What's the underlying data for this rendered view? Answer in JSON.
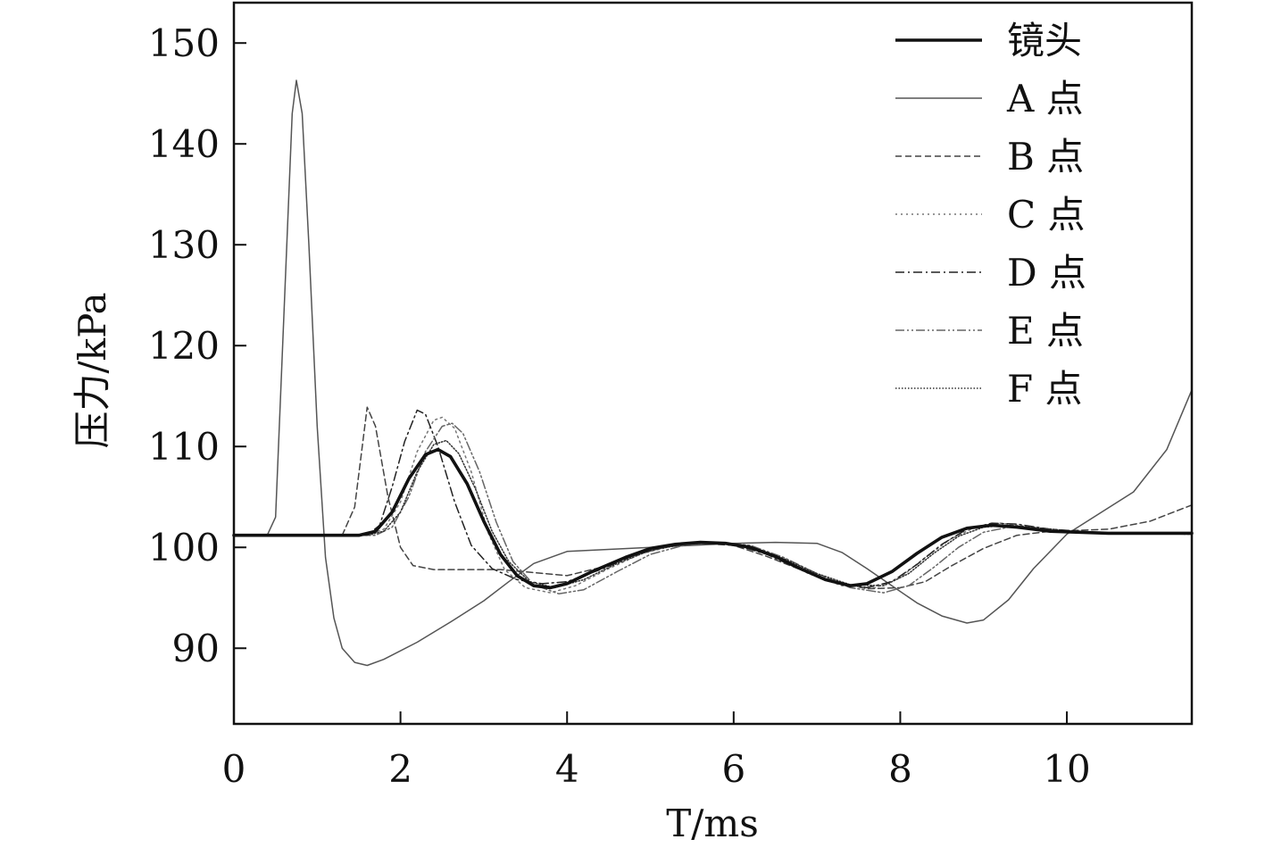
{
  "chart_data": {
    "type": "line",
    "title": "",
    "xlabel": "T/ms",
    "ylabel": "压力/kPa",
    "xlim": [
      0,
      11.5
    ],
    "ylim": [
      82.5,
      154
    ],
    "grid": false,
    "legend_position": "top-right",
    "x_ticks": [
      "0",
      "2",
      "4",
      "6",
      "8",
      "10"
    ],
    "x_tick_values": [
      0,
      2,
      4,
      6,
      8,
      10
    ],
    "y_ticks": [
      "90",
      "100",
      "110",
      "120",
      "130",
      "140",
      "150"
    ],
    "y_tick_values": [
      90,
      100,
      110,
      120,
      130,
      140,
      150
    ],
    "series": [
      {
        "name": "镜头",
        "style": "solid-thick",
        "color": "#111111",
        "points": [
          [
            0,
            101.2
          ],
          [
            1.5,
            101.2
          ],
          [
            1.7,
            101.6
          ],
          [
            1.9,
            103.5
          ],
          [
            2.1,
            106.8
          ],
          [
            2.3,
            109.2
          ],
          [
            2.45,
            109.7
          ],
          [
            2.6,
            109.0
          ],
          [
            2.8,
            106.3
          ],
          [
            3.0,
            102.6
          ],
          [
            3.2,
            99.3
          ],
          [
            3.4,
            97.2
          ],
          [
            3.6,
            96.2
          ],
          [
            3.8,
            96.0
          ],
          [
            4.0,
            96.4
          ],
          [
            4.3,
            97.6
          ],
          [
            4.7,
            99.0
          ],
          [
            5.0,
            99.9
          ],
          [
            5.3,
            100.3
          ],
          [
            5.6,
            100.5
          ],
          [
            5.9,
            100.4
          ],
          [
            6.2,
            100.0
          ],
          [
            6.5,
            99.1
          ],
          [
            6.8,
            97.9
          ],
          [
            7.1,
            96.8
          ],
          [
            7.4,
            96.2
          ],
          [
            7.6,
            96.4
          ],
          [
            7.9,
            97.6
          ],
          [
            8.2,
            99.4
          ],
          [
            8.5,
            101.0
          ],
          [
            8.8,
            101.9
          ],
          [
            9.1,
            102.2
          ],
          [
            9.4,
            102.0
          ],
          [
            9.8,
            101.6
          ],
          [
            10.5,
            101.4
          ],
          [
            11.5,
            101.4
          ]
        ]
      },
      {
        "name": "A 点",
        "style": "solid-thin",
        "color": "#555555",
        "points": [
          [
            0,
            101.2
          ],
          [
            0.4,
            101.2
          ],
          [
            0.5,
            103
          ],
          [
            0.6,
            123
          ],
          [
            0.7,
            143
          ],
          [
            0.75,
            146.3
          ],
          [
            0.82,
            143
          ],
          [
            0.9,
            130
          ],
          [
            1.0,
            112
          ],
          [
            1.1,
            99
          ],
          [
            1.2,
            93
          ],
          [
            1.3,
            90
          ],
          [
            1.45,
            88.6
          ],
          [
            1.6,
            88.3
          ],
          [
            1.8,
            88.9
          ],
          [
            2.2,
            90.6
          ],
          [
            2.6,
            92.6
          ],
          [
            3.0,
            94.7
          ],
          [
            3.3,
            96.6
          ],
          [
            3.6,
            98.4
          ],
          [
            4.0,
            99.6
          ],
          [
            4.5,
            99.8
          ],
          [
            5.0,
            100.0
          ],
          [
            5.5,
            100.2
          ],
          [
            6.0,
            100.4
          ],
          [
            6.5,
            100.5
          ],
          [
            7.0,
            100.4
          ],
          [
            7.3,
            99.5
          ],
          [
            7.6,
            97.9
          ],
          [
            7.9,
            96.2
          ],
          [
            8.2,
            94.5
          ],
          [
            8.5,
            93.2
          ],
          [
            8.8,
            92.5
          ],
          [
            9.0,
            92.8
          ],
          [
            9.3,
            94.8
          ],
          [
            9.6,
            97.9
          ],
          [
            10.0,
            101.3
          ],
          [
            10.4,
            103.4
          ],
          [
            10.8,
            105.5
          ],
          [
            11.2,
            109.7
          ],
          [
            11.5,
            115.6
          ]
        ]
      },
      {
        "name": "B 点",
        "style": "dashed",
        "color": "#444444",
        "points": [
          [
            0,
            101.2
          ],
          [
            1.3,
            101.2
          ],
          [
            1.45,
            104
          ],
          [
            1.6,
            113.9
          ],
          [
            1.7,
            112
          ],
          [
            1.85,
            105
          ],
          [
            2.0,
            100.0
          ],
          [
            2.15,
            98.2
          ],
          [
            2.4,
            97.8
          ],
          [
            2.8,
            97.8
          ],
          [
            3.2,
            97.8
          ],
          [
            3.6,
            97.5
          ],
          [
            4.0,
            97.2
          ],
          [
            4.4,
            98.0
          ],
          [
            4.8,
            99.2
          ],
          [
            5.2,
            100.1
          ],
          [
            5.6,
            100.4
          ],
          [
            6.0,
            100.2
          ],
          [
            6.4,
            99.1
          ],
          [
            6.8,
            97.8
          ],
          [
            7.2,
            96.6
          ],
          [
            7.6,
            95.9
          ],
          [
            8.0,
            96.0
          ],
          [
            8.3,
            96.6
          ],
          [
            8.6,
            98.1
          ],
          [
            9.0,
            99.9
          ],
          [
            9.4,
            101.2
          ],
          [
            9.8,
            101.6
          ],
          [
            10.5,
            101.8
          ],
          [
            11.0,
            102.6
          ],
          [
            11.5,
            104.2
          ]
        ]
      },
      {
        "name": "C 点",
        "style": "dotted",
        "color": "#777777",
        "points": [
          [
            0,
            101.2
          ],
          [
            1.6,
            101.2
          ],
          [
            1.8,
            101.8
          ],
          [
            2.0,
            104.5
          ],
          [
            2.2,
            109.5
          ],
          [
            2.4,
            112.6
          ],
          [
            2.5,
            112.9
          ],
          [
            2.65,
            111.8
          ],
          [
            2.85,
            107.5
          ],
          [
            3.05,
            101.5
          ],
          [
            3.25,
            97.8
          ],
          [
            3.5,
            96.0
          ],
          [
            3.8,
            95.5
          ],
          [
            4.1,
            96.2
          ],
          [
            4.5,
            97.9
          ],
          [
            4.9,
            99.4
          ],
          [
            5.3,
            100.2
          ],
          [
            5.7,
            100.5
          ],
          [
            6.1,
            100.2
          ],
          [
            6.5,
            99.0
          ],
          [
            6.9,
            97.4
          ],
          [
            7.3,
            96.2
          ],
          [
            7.7,
            96.0
          ],
          [
            8.0,
            97.0
          ],
          [
            8.3,
            99.0
          ],
          [
            8.6,
            100.8
          ],
          [
            8.9,
            102.0
          ],
          [
            9.2,
            102.4
          ],
          [
            9.5,
            102.1
          ],
          [
            9.9,
            101.6
          ],
          [
            10.5,
            101.4
          ],
          [
            11.5,
            101.4
          ]
        ]
      },
      {
        "name": "D 点",
        "style": "dash-dot",
        "color": "#222222",
        "points": [
          [
            0,
            101.2
          ],
          [
            1.6,
            101.2
          ],
          [
            1.75,
            102.2
          ],
          [
            1.9,
            106
          ],
          [
            2.05,
            110.5
          ],
          [
            2.2,
            113.6
          ],
          [
            2.3,
            113.2
          ],
          [
            2.45,
            110
          ],
          [
            2.65,
            104.5
          ],
          [
            2.85,
            100.2
          ],
          [
            3.1,
            97.9
          ],
          [
            3.4,
            96.8
          ],
          [
            3.7,
            96.4
          ],
          [
            4.0,
            96.6
          ],
          [
            4.4,
            97.8
          ],
          [
            4.8,
            99.2
          ],
          [
            5.2,
            100.1
          ],
          [
            5.6,
            100.5
          ],
          [
            6.0,
            100.3
          ],
          [
            6.4,
            99.3
          ],
          [
            6.8,
            97.8
          ],
          [
            7.2,
            96.6
          ],
          [
            7.6,
            96.0
          ],
          [
            7.9,
            96.6
          ],
          [
            8.2,
            98.3
          ],
          [
            8.5,
            100.3
          ],
          [
            8.8,
            101.8
          ],
          [
            9.1,
            102.4
          ],
          [
            9.4,
            102.3
          ],
          [
            9.8,
            101.8
          ],
          [
            10.5,
            101.4
          ],
          [
            11.5,
            101.4
          ]
        ]
      },
      {
        "name": "E 点",
        "style": "dash-dot-dot",
        "color": "#666666",
        "points": [
          [
            0,
            101.2
          ],
          [
            1.7,
            101.2
          ],
          [
            1.9,
            102.0
          ],
          [
            2.1,
            105
          ],
          [
            2.3,
            109.5
          ],
          [
            2.5,
            112.0
          ],
          [
            2.62,
            112.3
          ],
          [
            2.75,
            111.3
          ],
          [
            2.95,
            107.5
          ],
          [
            3.15,
            102.5
          ],
          [
            3.35,
            98.6
          ],
          [
            3.6,
            96.3
          ],
          [
            3.9,
            95.4
          ],
          [
            4.2,
            95.8
          ],
          [
            4.6,
            97.6
          ],
          [
            5.0,
            99.3
          ],
          [
            5.4,
            100.2
          ],
          [
            5.8,
            100.5
          ],
          [
            6.2,
            100.2
          ],
          [
            6.6,
            99.0
          ],
          [
            7.0,
            97.4
          ],
          [
            7.4,
            96.0
          ],
          [
            7.8,
            95.5
          ],
          [
            8.1,
            96.2
          ],
          [
            8.4,
            98.0
          ],
          [
            8.7,
            100.0
          ],
          [
            9.0,
            101.5
          ],
          [
            9.3,
            102.0
          ],
          [
            9.7,
            101.8
          ],
          [
            10.2,
            101.5
          ],
          [
            11.5,
            101.3
          ]
        ]
      },
      {
        "name": "F 点",
        "style": "fine-dotted",
        "color": "#333333",
        "points": [
          [
            0,
            101.2
          ],
          [
            1.6,
            101.2
          ],
          [
            1.8,
            101.6
          ],
          [
            2.0,
            103.5
          ],
          [
            2.2,
            107.5
          ],
          [
            2.4,
            110.2
          ],
          [
            2.55,
            110.6
          ],
          [
            2.7,
            109.3
          ],
          [
            2.9,
            105.8
          ],
          [
            3.1,
            101.6
          ],
          [
            3.3,
            98.6
          ],
          [
            3.55,
            96.6
          ],
          [
            3.85,
            96.0
          ],
          [
            4.2,
            96.8
          ],
          [
            4.6,
            98.4
          ],
          [
            5.0,
            99.7
          ],
          [
            5.4,
            100.3
          ],
          [
            5.8,
            100.5
          ],
          [
            6.2,
            100.1
          ],
          [
            6.6,
            98.9
          ],
          [
            7.0,
            97.4
          ],
          [
            7.4,
            96.3
          ],
          [
            7.8,
            96.2
          ],
          [
            8.1,
            97.4
          ],
          [
            8.4,
            99.4
          ],
          [
            8.7,
            101.1
          ],
          [
            9.0,
            102.0
          ],
          [
            9.3,
            102.2
          ],
          [
            9.7,
            101.9
          ],
          [
            10.2,
            101.5
          ],
          [
            11.5,
            101.3
          ]
        ]
      }
    ]
  }
}
